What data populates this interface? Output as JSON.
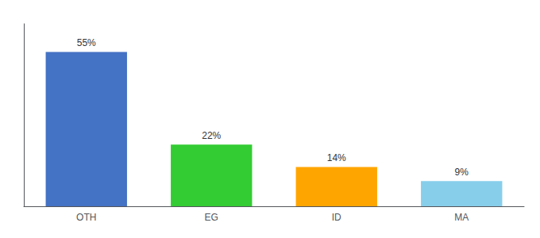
{
  "chart_data": {
    "type": "bar",
    "categories": [
      "OTH",
      "EG",
      "ID",
      "MA"
    ],
    "values": [
      55,
      22,
      14,
      9
    ],
    "value_labels": [
      "55%",
      "22%",
      "14%",
      "9%"
    ],
    "colors": [
      "#4472C4",
      "#33CC33",
      "#FFA500",
      "#87CEEB"
    ],
    "ylim": [
      0,
      65
    ],
    "data_labels": true,
    "tick_labels": "x",
    "grid": false
  }
}
